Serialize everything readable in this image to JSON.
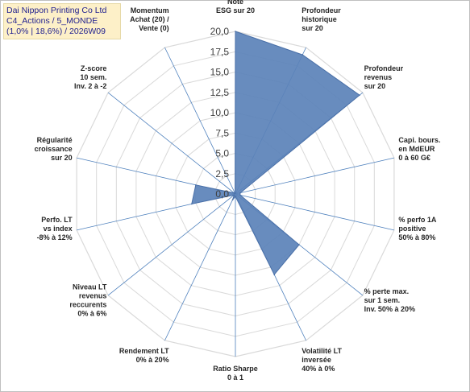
{
  "title": {
    "line1": "Dai Nippon Printing Co Ltd",
    "line2": "C4_Actions / 5_MONDE",
    "line3": "(1,0% | 18,6%) / 2026W09"
  },
  "chart_data": {
    "type": "radar",
    "rlim": [
      0,
      20
    ],
    "ticks": [
      "0,0",
      "2,5",
      "5,0",
      "7,5",
      "10,0",
      "12,5",
      "15,0",
      "17,5",
      "20,0"
    ],
    "grid": true,
    "colors": {
      "fill": "#5b82b8",
      "stroke": "#4a70a8",
      "grid": "#d9d9d9",
      "axis": "#4f81bd"
    },
    "axes": [
      {
        "label": [
          "Note",
          "ESG sur 20"
        ],
        "value": 20.0
      },
      {
        "label": [
          "Profondeur",
          "historique",
          "sur 20"
        ],
        "value": 19.0
      },
      {
        "label": [
          "Profondeur",
          "revenus",
          "sur 20"
        ],
        "value": 19.5
      },
      {
        "label": [
          "Capi. bours.",
          "en MdEUR",
          "0 à 60 G€"
        ],
        "value": 0.6
      },
      {
        "label": [
          "% perfo 1A",
          "positive",
          "50% à 80%"
        ],
        "value": 0.6
      },
      {
        "label": [
          "% perte max.",
          "sur 1 sem.",
          "Inv. 50% à 20%"
        ],
        "value": 10.0
      },
      {
        "label": [
          "Volatilité LT",
          "inversée",
          "40% à 0%"
        ],
        "value": 11.0
      },
      {
        "label": [
          "Ratio Sharpe",
          "0 à 1"
        ],
        "value": 0.3
      },
      {
        "label": [
          "Rendement LT",
          "0% à 20%"
        ],
        "value": 0.8
      },
      {
        "label": [
          "Niveau LT",
          "revenus",
          "reccurents",
          "0% à 6%"
        ],
        "value": 0.2
      },
      {
        "label": [
          "Perfo. LT",
          "vs index",
          "-8% à 12%"
        ],
        "value": 5.5
      },
      {
        "label": [
          "Régularité",
          "croissance",
          "sur 20"
        ],
        "value": 5.0
      },
      {
        "label": [
          "Z-score",
          "10 sem.",
          "Inv. 2 à -2"
        ],
        "value": 0.2
      },
      {
        "label": [
          "Momentum",
          "Achat (20) /",
          "Vente (0)"
        ],
        "value": 0.1
      }
    ]
  }
}
